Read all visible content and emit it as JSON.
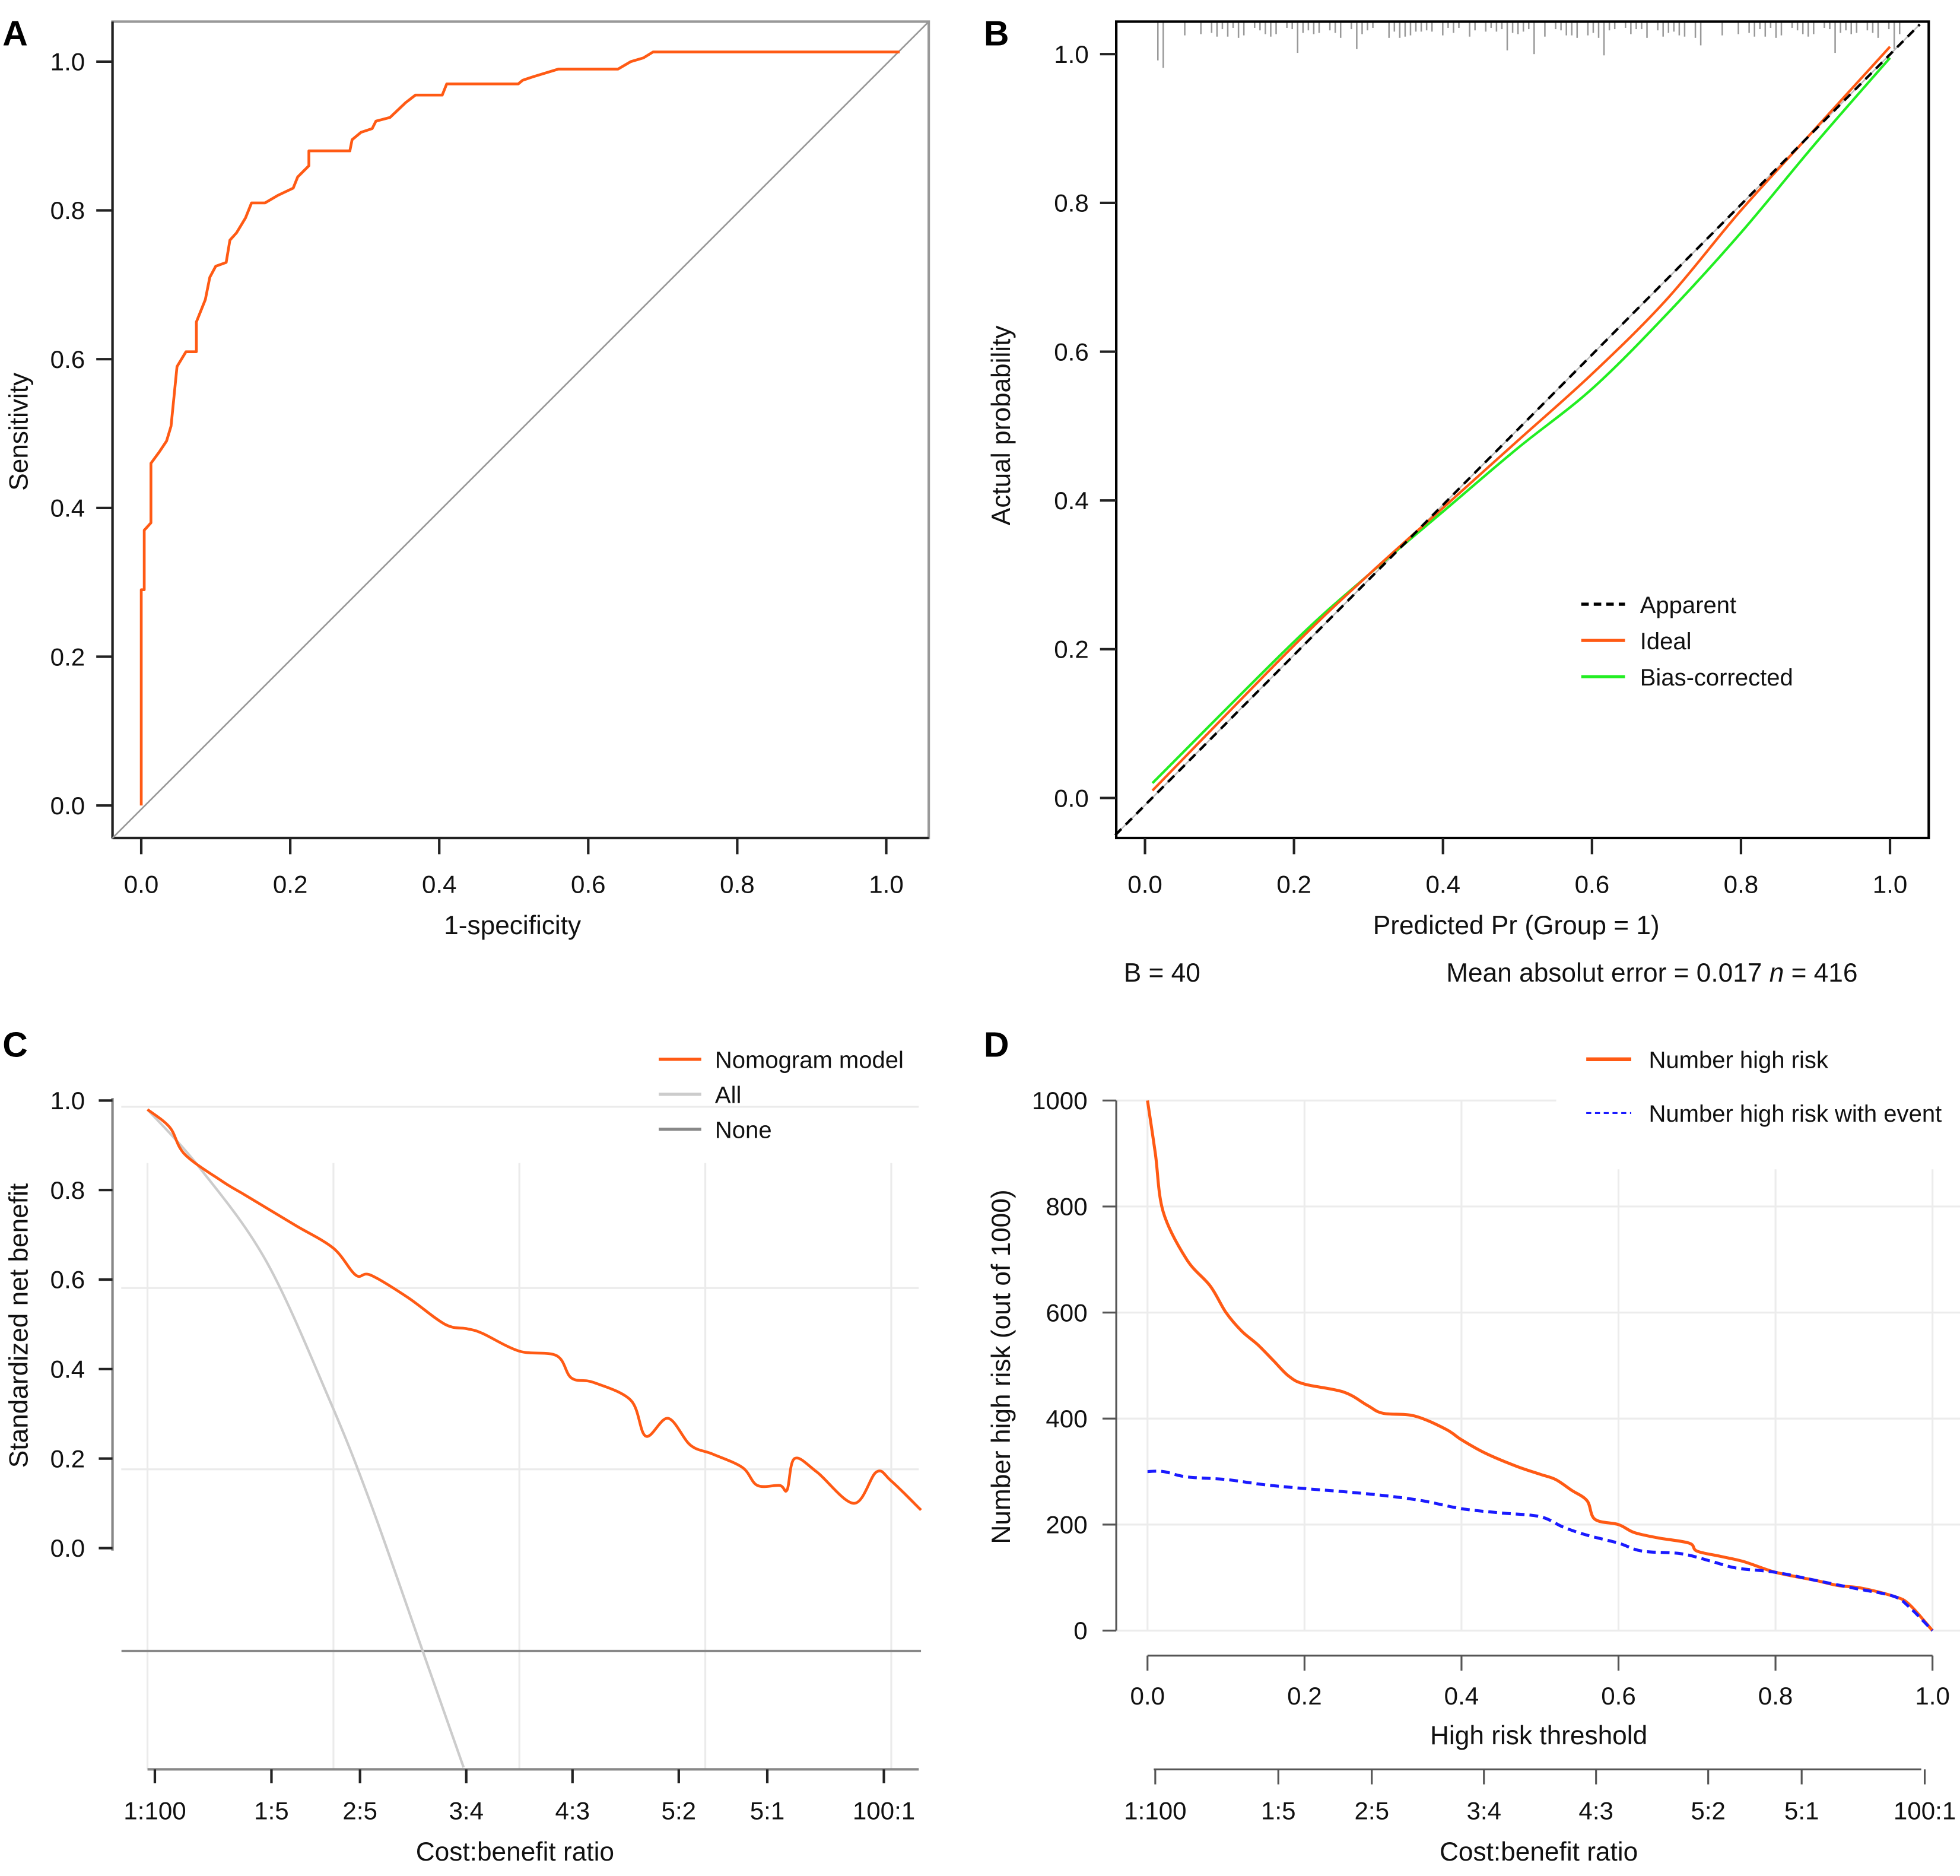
{
  "colors": {
    "orange": "#ff5a14",
    "green": "#22ee22",
    "blue": "#1a1aff",
    "black": "#000000",
    "light_gray": "#cccccc",
    "dark_gray": "#888888"
  },
  "chart_data": [
    {
      "panel": "A",
      "type": "line",
      "xlabel": "1-specificity",
      "ylabel": "Sensitivity",
      "xlim": [
        0,
        1
      ],
      "ylim": [
        0,
        1
      ],
      "xticks": [
        "0.0",
        "0.2",
        "0.4",
        "0.6",
        "0.8",
        "1.0"
      ],
      "yticks": [
        "0.0",
        "0.2",
        "0.4",
        "0.6",
        "0.8",
        "1.0"
      ],
      "series": [
        {
          "color": "#ff5a14",
          "step": true,
          "points": [
            [
              0,
              0
            ],
            [
              0,
              0.29
            ],
            [
              0.004,
              0.29
            ],
            [
              0.004,
              0.37
            ],
            [
              0.013,
              0.38
            ],
            [
              0.013,
              0.46
            ],
            [
              0.024,
              0.475
            ],
            [
              0.034,
              0.49
            ],
            [
              0.04,
              0.51
            ],
            [
              0.048,
              0.59
            ],
            [
              0.06,
              0.61
            ],
            [
              0.074,
              0.61
            ],
            [
              0.074,
              0.65
            ],
            [
              0.086,
              0.68
            ],
            [
              0.092,
              0.71
            ],
            [
              0.1,
              0.725
            ],
            [
              0.114,
              0.73
            ],
            [
              0.119,
              0.76
            ],
            [
              0.128,
              0.77
            ],
            [
              0.14,
              0.79
            ],
            [
              0.148,
              0.81
            ],
            [
              0.166,
              0.81
            ],
            [
              0.183,
              0.82
            ],
            [
              0.204,
              0.83
            ],
            [
              0.21,
              0.845
            ],
            [
              0.225,
              0.86
            ],
            [
              0.225,
              0.88
            ],
            [
              0.28,
              0.88
            ],
            [
              0.283,
              0.895
            ],
            [
              0.295,
              0.905
            ],
            [
              0.31,
              0.91
            ],
            [
              0.315,
              0.92
            ],
            [
              0.334,
              0.925
            ],
            [
              0.355,
              0.945
            ],
            [
              0.368,
              0.955
            ],
            [
              0.404,
              0.955
            ],
            [
              0.41,
              0.97
            ],
            [
              0.506,
              0.97
            ],
            [
              0.512,
              0.975
            ],
            [
              0.527,
              0.98
            ],
            [
              0.56,
              0.99
            ],
            [
              0.64,
              0.99
            ],
            [
              0.657,
              1.0
            ],
            [
              0.674,
              1.005
            ],
            [
              0.687,
              1.013
            ],
            [
              1.018,
              1.013
            ]
          ]
        },
        {
          "color": "#999999",
          "reference": "diagonal"
        }
      ]
    },
    {
      "panel": "B",
      "type": "line",
      "xlabel": "Predicted Pr (Group = 1)",
      "ylabel": "Actual probability",
      "xlim": [
        0,
        1
      ],
      "ylim": [
        0,
        1
      ],
      "xticks": [
        "0.0",
        "0.2",
        "0.4",
        "0.6",
        "0.8",
        "1.0"
      ],
      "yticks": [
        "0.0",
        "0.2",
        "0.4",
        "0.6",
        "0.8",
        "1.0"
      ],
      "legend": "center-right",
      "series": [
        {
          "name": "Apparent",
          "color": "#000000",
          "dash": true,
          "points": [
            [
              -0.04,
              -0.05
            ],
            [
              1.04,
              1.04
            ]
          ]
        },
        {
          "name": "Ideal",
          "color": "#ff5a14",
          "points": [
            [
              0.01,
              0.01
            ],
            [
              0.2,
              0.205
            ],
            [
              0.3,
              0.3
            ],
            [
              0.4,
              0.39
            ],
            [
              0.5,
              0.48
            ],
            [
              0.6,
              0.57
            ],
            [
              0.7,
              0.67
            ],
            [
              0.8,
              0.79
            ],
            [
              0.9,
              0.9
            ],
            [
              1.0,
              1.01
            ]
          ]
        },
        {
          "name": "Bias-corrected",
          "color": "#22ee22",
          "points": [
            [
              0.01,
              0.02
            ],
            [
              0.2,
              0.21
            ],
            [
              0.3,
              0.3
            ],
            [
              0.4,
              0.385
            ],
            [
              0.5,
              0.47
            ],
            [
              0.6,
              0.55
            ],
            [
              0.7,
              0.65
            ],
            [
              0.8,
              0.76
            ],
            [
              0.9,
              0.88
            ],
            [
              1.0,
              0.995
            ]
          ]
        }
      ],
      "footer_left": "B = 40",
      "footer_right_a": "Mean absolut error = 0.017 ",
      "footer_right_n": "n",
      "footer_right_b": " = 416"
    },
    {
      "panel": "C",
      "type": "line",
      "xlabel": "Cost:benefit ratio",
      "ylabel": "Standardized net benefit",
      "yticks": [
        "0.0",
        "0.2",
        "0.4",
        "0.6",
        "0.8",
        "1.0"
      ],
      "cost_benefit_ticks": [
        "1:100",
        "1:5",
        "2:5",
        "3:4",
        "4:3",
        "5:2",
        "5:1",
        "100:1"
      ],
      "legend": "top-right",
      "series": [
        {
          "name": "Nomogram model",
          "color": "#ff5a14",
          "points": [
            [
              0,
              0.98
            ],
            [
              0.03,
              0.94
            ],
            [
              0.05,
              0.88
            ],
            [
              0.1,
              0.82
            ],
            [
              0.13,
              0.79
            ],
            [
              0.16,
              0.76
            ],
            [
              0.2,
              0.72
            ],
            [
              0.25,
              0.67
            ],
            [
              0.28,
              0.61
            ],
            [
              0.3,
              0.61
            ],
            [
              0.35,
              0.56
            ],
            [
              0.4,
              0.5
            ],
            [
              0.43,
              0.49
            ],
            [
              0.45,
              0.48
            ],
            [
              0.5,
              0.44
            ],
            [
              0.55,
              0.43
            ],
            [
              0.57,
              0.38
            ],
            [
              0.6,
              0.37
            ],
            [
              0.65,
              0.33
            ],
            [
              0.67,
              0.25
            ],
            [
              0.7,
              0.29
            ],
            [
              0.73,
              0.23
            ],
            [
              0.76,
              0.21
            ],
            [
              0.8,
              0.18
            ],
            [
              0.82,
              0.14
            ],
            [
              0.85,
              0.14
            ],
            [
              0.86,
              0.13
            ],
            [
              0.87,
              0.2
            ],
            [
              0.9,
              0.17
            ],
            [
              0.95,
              0.1
            ],
            [
              0.98,
              0.17
            ],
            [
              1.0,
              0.15
            ],
            [
              1.04,
              0.085
            ]
          ]
        },
        {
          "name": "All",
          "color": "#cccccc",
          "points": [
            [
              0,
              0.98
            ],
            [
              0.07,
              0.85
            ],
            [
              0.16,
              0.64
            ],
            [
              0.245,
              0.33
            ],
            [
              0.3,
              0.1
            ],
            [
              0.37,
              -0.23
            ],
            [
              0.425,
              -0.49
            ]
          ]
        },
        {
          "name": "None",
          "color": "#888888",
          "points": [
            [
              -0.035,
              -0.23
            ],
            [
              1.04,
              -0.23
            ]
          ]
        }
      ]
    },
    {
      "panel": "D",
      "type": "line",
      "xlabel": "High risk threshold",
      "xlabel2": "Cost:benefit ratio",
      "ylabel": "Number high risk (out of 1000)",
      "xlim": [
        0,
        1
      ],
      "ylim": [
        0,
        1000
      ],
      "xticks": [
        "0.0",
        "0.2",
        "0.4",
        "0.6",
        "0.8",
        "1.0"
      ],
      "yticks": [
        "0",
        "200",
        "400",
        "600",
        "800",
        "1000"
      ],
      "cost_benefit_ticks": [
        "1:100",
        "1:5",
        "2:5",
        "3:4",
        "4:3",
        "5:2",
        "5:1",
        "100:1"
      ],
      "legend": "top-right",
      "series": [
        {
          "name": "Number high risk",
          "color": "#ff5a14",
          "points": [
            [
              0,
              1000
            ],
            [
              0.01,
              900
            ],
            [
              0.02,
              790
            ],
            [
              0.05,
              700
            ],
            [
              0.08,
              650
            ],
            [
              0.1,
              600
            ],
            [
              0.12,
              565
            ],
            [
              0.14,
              540
            ],
            [
              0.16,
              510
            ],
            [
              0.18,
              480
            ],
            [
              0.2,
              465
            ],
            [
              0.25,
              450
            ],
            [
              0.28,
              425
            ],
            [
              0.3,
              410
            ],
            [
              0.34,
              405
            ],
            [
              0.38,
              380
            ],
            [
              0.4,
              360
            ],
            [
              0.43,
              335
            ],
            [
              0.47,
              310
            ],
            [
              0.5,
              295
            ],
            [
              0.52,
              285
            ],
            [
              0.54,
              265
            ],
            [
              0.56,
              245
            ],
            [
              0.57,
              210
            ],
            [
              0.6,
              200
            ],
            [
              0.62,
              185
            ],
            [
              0.65,
              175
            ],
            [
              0.69,
              165
            ],
            [
              0.7,
              150
            ],
            [
              0.73,
              140
            ],
            [
              0.76,
              130
            ],
            [
              0.8,
              110
            ],
            [
              0.85,
              95
            ],
            [
              0.88,
              85
            ],
            [
              0.91,
              80
            ],
            [
              0.95,
              65
            ],
            [
              0.97,
              50
            ],
            [
              1.0,
              0
            ]
          ]
        },
        {
          "name": "Number high risk with event",
          "color": "#1a1aff",
          "dash": true,
          "points": [
            [
              0,
              300
            ],
            [
              0.02,
              300
            ],
            [
              0.05,
              290
            ],
            [
              0.1,
              285
            ],
            [
              0.15,
              275
            ],
            [
              0.2,
              268
            ],
            [
              0.25,
              262
            ],
            [
              0.3,
              255
            ],
            [
              0.35,
              245
            ],
            [
              0.4,
              230
            ],
            [
              0.45,
              222
            ],
            [
              0.5,
              215
            ],
            [
              0.53,
              195
            ],
            [
              0.56,
              180
            ],
            [
              0.6,
              165
            ],
            [
              0.63,
              150
            ],
            [
              0.68,
              145
            ],
            [
              0.72,
              130
            ],
            [
              0.75,
              118
            ],
            [
              0.8,
              110
            ],
            [
              0.85,
              95
            ],
            [
              0.9,
              80
            ],
            [
              0.95,
              65
            ],
            [
              0.97,
              45
            ],
            [
              1.0,
              0
            ]
          ]
        }
      ]
    }
  ]
}
